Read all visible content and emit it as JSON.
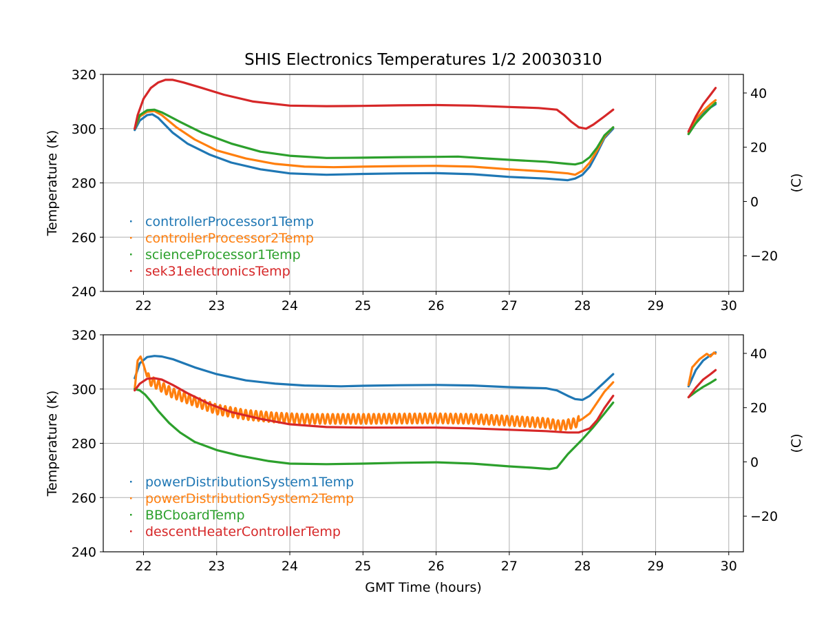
{
  "chart_data": [
    {
      "type": "line",
      "title": "SHIS Electronics Temperatures 1/2 20030310",
      "xlabel": "",
      "ylabel": "Temperature (K)",
      "y2label": "(C)",
      "xlim": [
        21.45,
        30.2
      ],
      "ylim": [
        240,
        320
      ],
      "y2lim": [
        -33.15,
        46.85
      ],
      "xticks": [
        22,
        23,
        24,
        25,
        26,
        27,
        28,
        29,
        30
      ],
      "yticks": [
        240,
        260,
        280,
        300,
        320
      ],
      "y2ticks": [
        -20,
        0,
        20,
        40
      ],
      "y2tick_labels": [
        "−20",
        "0",
        "20",
        "40"
      ],
      "grid": true,
      "legend_position": "lower-left",
      "series": [
        {
          "name": "controllerProcessor1Temp",
          "color": "#1f77b4",
          "segments": [
            {
              "x": [
                21.88,
                21.95,
                22.05,
                22.12,
                22.2,
                22.4,
                22.6,
                22.9,
                23.2,
                23.6,
                24.0,
                24.5,
                25.0,
                25.5,
                26.0,
                26.5,
                27.0,
                27.5,
                27.8,
                27.9,
                28.0,
                28.1,
                28.2,
                28.3,
                28.42
              ],
              "y": [
                299.5,
                303.0,
                305.0,
                305.3,
                304.0,
                298.5,
                294.5,
                290.5,
                287.5,
                285.0,
                283.5,
                283.0,
                283.3,
                283.5,
                283.6,
                283.2,
                282.2,
                281.6,
                281.0,
                281.6,
                283.0,
                286.0,
                291.0,
                296.5,
                300.0
              ]
            },
            {
              "x": [
                29.45,
                29.55,
                29.65,
                29.75,
                29.82
              ],
              "y": [
                298.0,
                302.5,
                305.5,
                307.8,
                309.0
              ]
            }
          ]
        },
        {
          "name": "controllerProcessor2Temp",
          "color": "#ff7f0e",
          "segments": [
            {
              "x": [
                21.88,
                21.95,
                22.05,
                22.15,
                22.25,
                22.45,
                22.7,
                23.0,
                23.4,
                23.8,
                24.2,
                24.6,
                25.0,
                25.5,
                26.0,
                26.5,
                27.0,
                27.5,
                27.8,
                27.9,
                28.0,
                28.1,
                28.2,
                28.3,
                28.42
              ],
              "y": [
                300.0,
                304.5,
                306.2,
                306.5,
                305.0,
                300.5,
                296.0,
                292.0,
                289.0,
                287.0,
                286.0,
                285.8,
                286.0,
                286.2,
                286.3,
                286.0,
                285.0,
                284.2,
                283.5,
                283.0,
                284.5,
                287.5,
                292.0,
                297.0,
                300.5
              ]
            },
            {
              "x": [
                29.45,
                29.55,
                29.65,
                29.75,
                29.82
              ],
              "y": [
                298.5,
                303.5,
                306.5,
                309.0,
                310.5
              ]
            }
          ]
        },
        {
          "name": "scienceProcessor1Temp",
          "color": "#2ca02c",
          "segments": [
            {
              "x": [
                21.88,
                21.95,
                22.05,
                22.15,
                22.25,
                22.5,
                22.8,
                23.2,
                23.6,
                24.0,
                24.5,
                25.0,
                25.5,
                26.0,
                26.3,
                26.7,
                27.0,
                27.5,
                27.8,
                27.9,
                28.0,
                28.1,
                28.2,
                28.3,
                28.42
              ],
              "y": [
                300.0,
                305.0,
                306.8,
                307.0,
                306.0,
                302.5,
                298.5,
                294.5,
                291.5,
                290.0,
                289.2,
                289.3,
                289.5,
                289.6,
                289.7,
                289.0,
                288.5,
                287.8,
                287.0,
                286.8,
                287.5,
                289.5,
                293.0,
                297.5,
                300.5
              ]
            },
            {
              "x": [
                29.45,
                29.55,
                29.65,
                29.75,
                29.82
              ],
              "y": [
                298.0,
                302.0,
                305.0,
                307.8,
                309.5
              ]
            }
          ]
        },
        {
          "name": "sek31electronicsTemp",
          "color": "#d62728",
          "segments": [
            {
              "x": [
                21.88,
                21.92,
                22.0,
                22.1,
                22.2,
                22.3,
                22.4,
                22.55,
                22.8,
                23.1,
                23.5,
                24.0,
                24.5,
                25.0,
                25.5,
                26.0,
                26.5,
                27.0,
                27.4,
                27.65,
                27.75,
                27.85,
                27.95,
                28.05,
                28.15,
                28.3,
                28.42
              ],
              "y": [
                300.0,
                305.0,
                311.0,
                315.0,
                317.0,
                318.0,
                318.0,
                317.0,
                315.0,
                312.5,
                310.0,
                308.5,
                308.3,
                308.4,
                308.6,
                308.7,
                308.5,
                308.0,
                307.6,
                307.0,
                305.0,
                302.5,
                300.5,
                300.0,
                301.5,
                304.5,
                307.0
              ]
            },
            {
              "x": [
                29.45,
                29.55,
                29.65,
                29.75,
                29.82
              ],
              "y": [
                299.0,
                304.5,
                309.0,
                312.5,
                315.0
              ]
            }
          ]
        }
      ]
    },
    {
      "type": "line",
      "title": "",
      "xlabel": "GMT Time (hours)",
      "ylabel": "Temperature (K)",
      "y2label": "(C)",
      "xlim": [
        21.45,
        30.2
      ],
      "ylim": [
        240,
        320
      ],
      "y2lim": [
        -33.15,
        46.85
      ],
      "xticks": [
        22,
        23,
        24,
        25,
        26,
        27,
        28,
        29,
        30
      ],
      "yticks": [
        240,
        260,
        280,
        300,
        320
      ],
      "y2ticks": [
        -20,
        0,
        20,
        40
      ],
      "y2tick_labels": [
        "−20",
        "0",
        "20",
        "40"
      ],
      "grid": true,
      "legend_position": "lower-left",
      "series": [
        {
          "name": "powerDistributionSystem1Temp",
          "color": "#1f77b4",
          "segments": [
            {
              "x": [
                21.88,
                21.95,
                22.05,
                22.15,
                22.25,
                22.4,
                22.7,
                23.0,
                23.4,
                23.8,
                24.2,
                24.7,
                25.0,
                25.5,
                26.0,
                26.5,
                27.0,
                27.5,
                27.65,
                27.8,
                27.9,
                28.0,
                28.1,
                28.2,
                28.3,
                28.42
              ],
              "y": [
                304.0,
                309.5,
                311.8,
                312.2,
                312.0,
                311.0,
                308.0,
                305.5,
                303.2,
                302.0,
                301.3,
                301.0,
                301.2,
                301.4,
                301.5,
                301.3,
                300.7,
                300.3,
                299.5,
                297.5,
                296.3,
                296.0,
                297.5,
                300.0,
                302.5,
                305.5
              ]
            },
            {
              "x": [
                29.45,
                29.55,
                29.65,
                29.75,
                29.82
              ],
              "y": [
                301.0,
                307.0,
                310.5,
                312.5,
                313.5
              ]
            }
          ]
        },
        {
          "name": "powerDistributionSystem2Temp",
          "color": "#ff7f0e",
          "osc_amp": 1.8,
          "osc_period": 0.07,
          "segments": [
            {
              "x": [
                21.88,
                21.92,
                21.96,
                22.0,
                22.05,
                22.1,
                22.2,
                22.4,
                22.7,
                23.0,
                23.4,
                23.8,
                24.2,
                25.0,
                26.0,
                26.5,
                27.0,
                27.5,
                27.7,
                27.9,
                28.0,
                28.1,
                28.2,
                28.3,
                28.42
              ],
              "y": [
                300.0,
                310.5,
                312.0,
                309.0,
                304.5,
                303.0,
                301.5,
                298.5,
                295.5,
                292.5,
                290.5,
                289.5,
                289.0,
                289.0,
                289.2,
                289.0,
                288.3,
                287.5,
                286.5,
                287.5,
                289.0,
                291.0,
                295.0,
                299.0,
                302.5
              ]
            },
            {
              "x": [
                29.45,
                29.5,
                29.6,
                29.7,
                29.75,
                29.8,
                29.82
              ],
              "y": [
                301.5,
                308.0,
                311.0,
                313.0,
                312.0,
                313.5,
                313.0
              ]
            }
          ]
        },
        {
          "name": "BBCboardTemp",
          "color": "#2ca02c",
          "segments": [
            {
              "x": [
                21.88,
                21.95,
                22.02,
                22.1,
                22.2,
                22.35,
                22.5,
                22.7,
                23.0,
                23.3,
                23.7,
                24.0,
                24.5,
                25.0,
                25.5,
                26.0,
                26.5,
                27.0,
                27.3,
                27.55,
                27.65,
                27.8,
                28.0,
                28.15,
                28.3,
                28.42
              ],
              "y": [
                300.0,
                299.5,
                298.0,
                295.5,
                292.0,
                287.5,
                284.0,
                280.5,
                277.5,
                275.5,
                273.5,
                272.5,
                272.3,
                272.5,
                272.8,
                273.0,
                272.5,
                271.5,
                271.0,
                270.5,
                271.0,
                276.0,
                281.5,
                286.0,
                291.0,
                295.0
              ]
            },
            {
              "x": [
                29.45,
                29.55,
                29.65,
                29.75,
                29.82
              ],
              "y": [
                297.0,
                299.0,
                300.8,
                302.3,
                303.5
              ]
            }
          ]
        },
        {
          "name": "descentHeaterControllerTemp",
          "color": "#d62728",
          "segments": [
            {
              "x": [
                21.88,
                21.95,
                22.05,
                22.15,
                22.25,
                22.4,
                22.6,
                22.9,
                23.2,
                23.6,
                24.0,
                24.5,
                25.0,
                25.5,
                26.0,
                26.5,
                27.0,
                27.5,
                27.8,
                27.95,
                28.1,
                28.2,
                28.3,
                28.42
              ],
              "y": [
                299.5,
                302.0,
                303.8,
                304.0,
                303.5,
                301.5,
                298.5,
                294.5,
                291.5,
                289.0,
                287.0,
                286.0,
                285.8,
                285.8,
                285.8,
                285.5,
                285.0,
                284.5,
                284.0,
                284.0,
                285.5,
                288.5,
                293.0,
                297.5
              ]
            },
            {
              "x": [
                29.45,
                29.55,
                29.65,
                29.75,
                29.82
              ],
              "y": [
                297.0,
                300.5,
                303.5,
                305.5,
                307.0
              ]
            }
          ]
        }
      ]
    }
  ]
}
